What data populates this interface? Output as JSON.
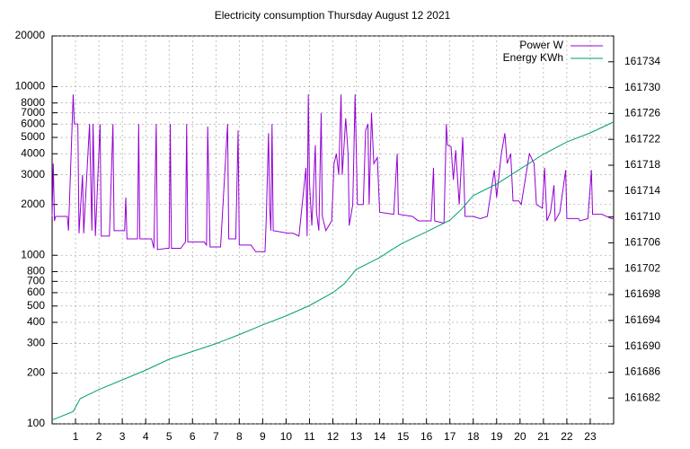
{
  "chart_data": {
    "type": "line",
    "title": "Electricity consumption Thursday August 12 2021",
    "xlim": [
      0,
      24
    ],
    "xticks": [
      1,
      2,
      3,
      4,
      5,
      6,
      7,
      8,
      9,
      10,
      11,
      12,
      13,
      14,
      15,
      16,
      17,
      18,
      19,
      20,
      21,
      22,
      23
    ],
    "ylim": [
      100,
      20000
    ],
    "yscale": "log",
    "yticks": [
      100,
      200,
      300,
      400,
      500,
      600,
      700,
      800,
      1000,
      2000,
      3000,
      4000,
      5000,
      6000,
      7000,
      8000,
      10000,
      20000
    ],
    "y2lim": [
      161678,
      161738
    ],
    "y2ticks": [
      161682,
      161686,
      161690,
      161694,
      161698,
      161702,
      161706,
      161710,
      161714,
      161718,
      161722,
      161726,
      161730,
      161734
    ],
    "grid": true,
    "legend": "top-right",
    "series": [
      {
        "name": "Power W",
        "color": "#9400d3",
        "x": [
          0,
          0.05,
          0.1,
          0.15,
          0.65,
          0.7,
          0.9,
          0.95,
          1.1,
          1.15,
          1.3,
          1.35,
          1.6,
          1.7,
          1.75,
          1.85,
          2.05,
          2.1,
          2.45,
          2.6,
          2.65,
          3.1,
          3.15,
          3.2,
          3.65,
          3.7,
          3.75,
          4.25,
          4.35,
          4.45,
          4.5,
          4.9,
          5,
          5.05,
          5.1,
          5.5,
          5.7,
          5.75,
          5.8,
          6.5,
          6.6,
          6.65,
          6.7,
          6.75,
          7.2,
          7.5,
          7.55,
          7.85,
          7.95,
          8.0,
          8.5,
          8.7,
          9.1,
          9.15,
          9.25,
          9.3,
          9.35,
          9.4,
          9.45,
          10.1,
          10.3,
          10.55,
          10.85,
          10.9,
          10.95,
          11.0,
          11.1,
          11.25,
          11.3,
          11.4,
          11.5,
          11.55,
          11.7,
          11.95,
          12.05,
          12.15,
          12.25,
          12.35,
          12.4,
          12.55,
          12.65,
          12.7,
          12.85,
          12.95,
          13.05,
          13.3,
          13.4,
          13.5,
          13.55,
          13.65,
          13.75,
          13.9,
          14.0,
          14.6,
          14.75,
          14.8,
          15.4,
          15.65,
          16.2,
          16.3,
          16.35,
          16.75,
          16.85,
          16.9,
          17.05,
          17.15,
          17.25,
          17.4,
          17.55,
          17.65,
          18.0,
          18.3,
          18.6,
          18.9,
          19.0,
          19.2,
          19.35,
          19.45,
          19.6,
          19.7,
          19.95,
          20.05,
          20.4,
          20.6,
          20.7,
          20.95,
          21.05,
          21.15,
          21.3,
          21.45,
          21.5,
          21.7,
          21.95,
          22.0,
          22.5,
          22.55,
          22.9,
          23.05,
          23.1,
          23.5,
          23.9,
          24
        ],
        "values": [
          1700,
          3500,
          1600,
          1700,
          1700,
          1400,
          9000,
          6000,
          6000,
          1350,
          3000,
          1350,
          6000,
          1400,
          6000,
          1300,
          6000,
          1300,
          1300,
          6000,
          1400,
          1400,
          2200,
          1250,
          1250,
          6000,
          1250,
          1250,
          1100,
          6000,
          1080,
          1100,
          1100,
          6000,
          1100,
          1100,
          1200,
          6000,
          1200,
          1200,
          1150,
          5800,
          2600,
          1120,
          1120,
          6000,
          1250,
          1250,
          5500,
          1150,
          1150,
          1050,
          1050,
          1600,
          5300,
          1900,
          1400,
          6000,
          1400,
          1350,
          1350,
          1300,
          3300,
          1300,
          9000,
          2700,
          1500,
          4500,
          1800,
          1400,
          7000,
          1700,
          1400,
          1600,
          3500,
          4000,
          3000,
          9000,
          3000,
          6500,
          4000,
          1500,
          2000,
          9000,
          2000,
          2000,
          5500,
          6000,
          2000,
          7000,
          3500,
          3800,
          1800,
          1750,
          4000,
          1750,
          1700,
          1600,
          1600,
          3300,
          1600,
          1550,
          6000,
          4500,
          4400,
          2800,
          4200,
          2000,
          5000,
          1700,
          1700,
          1650,
          1700,
          3200,
          2200,
          4000,
          5300,
          3500,
          4000,
          2100,
          2100,
          2000,
          4000,
          3500,
          2000,
          1900,
          3300,
          1600,
          1800,
          2600,
          1600,
          1800,
          3200,
          1650,
          1650,
          1600,
          1650,
          3200,
          1750,
          1750,
          1650,
          1650
        ]
      },
      {
        "name": "Energy KWh",
        "color": "#009e73",
        "axis": "y2",
        "x": [
          0,
          0.9,
          1.2,
          2,
          4,
          5,
          7,
          8,
          9,
          10,
          11,
          12,
          12.5,
          13,
          14,
          14.5,
          15,
          16,
          17,
          17.5,
          18,
          19,
          20,
          21,
          22,
          23,
          24
        ],
        "values": [
          161678.6,
          161679.9,
          161681.9,
          161683.3,
          161686.3,
          161688,
          161690.4,
          161691.8,
          161693.3,
          161694.7,
          161696.3,
          161698.3,
          161699.7,
          161701.9,
          161703.7,
          161704.9,
          161706,
          161707.7,
          161709.5,
          161711.2,
          161713.3,
          161715.1,
          161717.4,
          161719.7,
          161721.6,
          161723,
          161724.7
        ]
      }
    ]
  }
}
